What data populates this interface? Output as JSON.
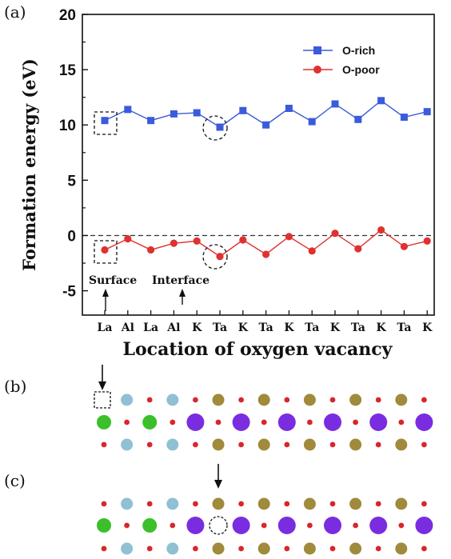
{
  "panels": {
    "a": "(a)",
    "b": "(b)",
    "c": "(c)"
  },
  "chart_data": {
    "type": "line",
    "xlabel": "Location of oxygen vacancy",
    "ylabel": "Formation energy (eV)",
    "ylim": [
      -7.2,
      20
    ],
    "yticks": [
      -5,
      0,
      5,
      10,
      15,
      20
    ],
    "categories": [
      "La",
      "Al",
      "La",
      "Al",
      "K",
      "Ta",
      "K",
      "Ta",
      "K",
      "Ta",
      "K",
      "Ta",
      "K",
      "Ta",
      "K"
    ],
    "reference_line": 0,
    "legend_position": "top-right",
    "series": [
      {
        "name": "O-rich",
        "color": "#3b5bdb",
        "marker": "square",
        "values": [
          10.4,
          11.4,
          10.4,
          11.0,
          11.1,
          9.8,
          11.3,
          10.0,
          11.5,
          10.3,
          11.9,
          10.5,
          12.2,
          10.7,
          11.2
        ]
      },
      {
        "name": "O-poor",
        "color": "#e03131",
        "marker": "circle",
        "values": [
          -1.3,
          -0.3,
          -1.3,
          -0.7,
          -0.5,
          -1.9,
          -0.4,
          -1.7,
          -0.1,
          -1.4,
          0.2,
          -1.2,
          0.5,
          -1.0,
          -0.5
        ]
      }
    ],
    "annotations": {
      "surface": "Surface",
      "interface": "Interface"
    }
  },
  "colors": {
    "la": "#3bbf2a",
    "al": "#8fc0d4",
    "k": "#7a2de0",
    "ta": "#a08a3c",
    "o": "#d9262a"
  }
}
